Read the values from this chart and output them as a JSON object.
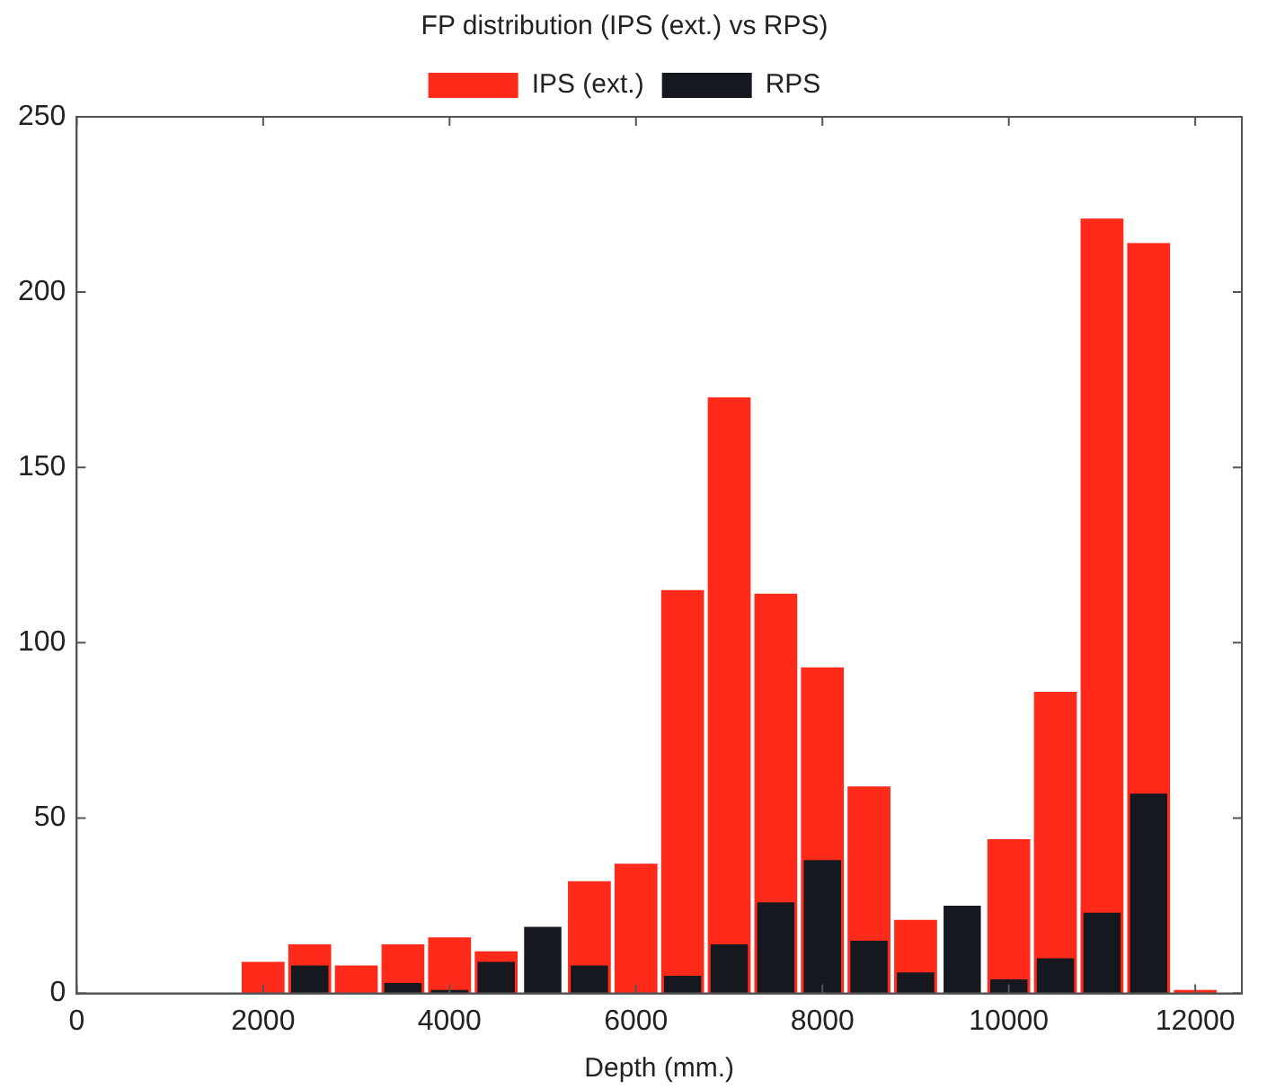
{
  "chart_data": {
    "type": "bar",
    "title": "FP distribution (IPS (ext.) vs RPS)",
    "xlabel": "Depth (mm.)",
    "x": [
      2000,
      2500,
      3000,
      3500,
      4000,
      4500,
      5000,
      5500,
      6000,
      6500,
      7000,
      7500,
      8000,
      8500,
      9000,
      9500,
      10000,
      10500,
      11000,
      11500,
      12000
    ],
    "series": [
      {
        "name": "IPS (ext.)",
        "color": "#ff2a1a",
        "values": [
          9,
          14,
          8,
          14,
          16,
          12,
          null,
          32,
          37,
          115,
          170,
          114,
          93,
          59,
          21,
          null,
          44,
          86,
          221,
          214,
          1
        ]
      },
      {
        "name": "RPS",
        "color": "#161820",
        "values": [
          0,
          8,
          0,
          3,
          1,
          9,
          19,
          8,
          0,
          5,
          14,
          26,
          38,
          15,
          6,
          25,
          4,
          10,
          23,
          57,
          0
        ]
      }
    ],
    "xlim": [
      0,
      12500
    ],
    "xticks": [
      0,
      2000,
      4000,
      6000,
      8000,
      10000,
      12000
    ],
    "ylim": [
      0,
      250
    ],
    "yticks": [
      0,
      50,
      100,
      150,
      200,
      250
    ],
    "grid": false,
    "legend": "top"
  }
}
